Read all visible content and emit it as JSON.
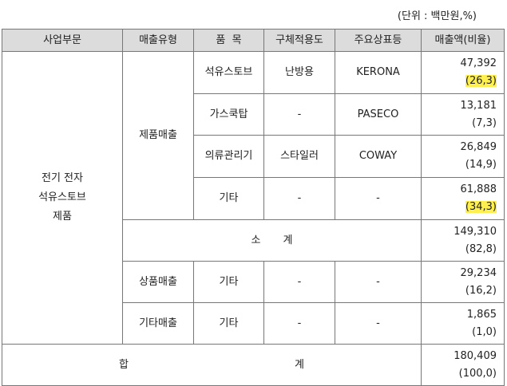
{
  "unit_note": "(단위 : 백만원,%)",
  "headers": [
    "사업부문",
    "매출유형",
    "품  목",
    "구체적용도",
    "주요상표등",
    "매출액(비율)"
  ],
  "segment": [
    "전기 전자",
    "석유스토브",
    "제품"
  ],
  "product_sales_label": "제품매출",
  "rows": [
    {
      "item": "석유스토브",
      "use": "난방용",
      "brand": "KERONA",
      "amount": "47,392",
      "ratio": "(26,3)"
    },
    {
      "item": "가스쿡탑",
      "use": "-",
      "brand": "PASECO",
      "amount": "13,181",
      "ratio": "(7,3)"
    },
    {
      "item": "의류관리기",
      "use": "스타일러",
      "brand": "COWAY",
      "amount": "26,849",
      "ratio": "(14,9)"
    },
    {
      "item": "기타",
      "use": "-",
      "brand": "-",
      "amount": "61,888",
      "ratio": "(34,3)"
    }
  ],
  "subtotal": {
    "label_a": "소",
    "label_b": "계",
    "amount": "149,310",
    "ratio": "(82,8)"
  },
  "goods": {
    "type": "상품매출",
    "item": "기타",
    "use": "-",
    "brand": "-",
    "amount": "29,234",
    "ratio": "(16,2)"
  },
  "other": {
    "type": "기타매출",
    "item": "기타",
    "use": "-",
    "brand": "-",
    "amount": "1,865",
    "ratio": "(1,0)"
  },
  "total": {
    "label_a": "합",
    "label_b": "계",
    "amount": "180,409",
    "ratio": "(100,0)"
  },
  "highlight_color": "#fff04f"
}
